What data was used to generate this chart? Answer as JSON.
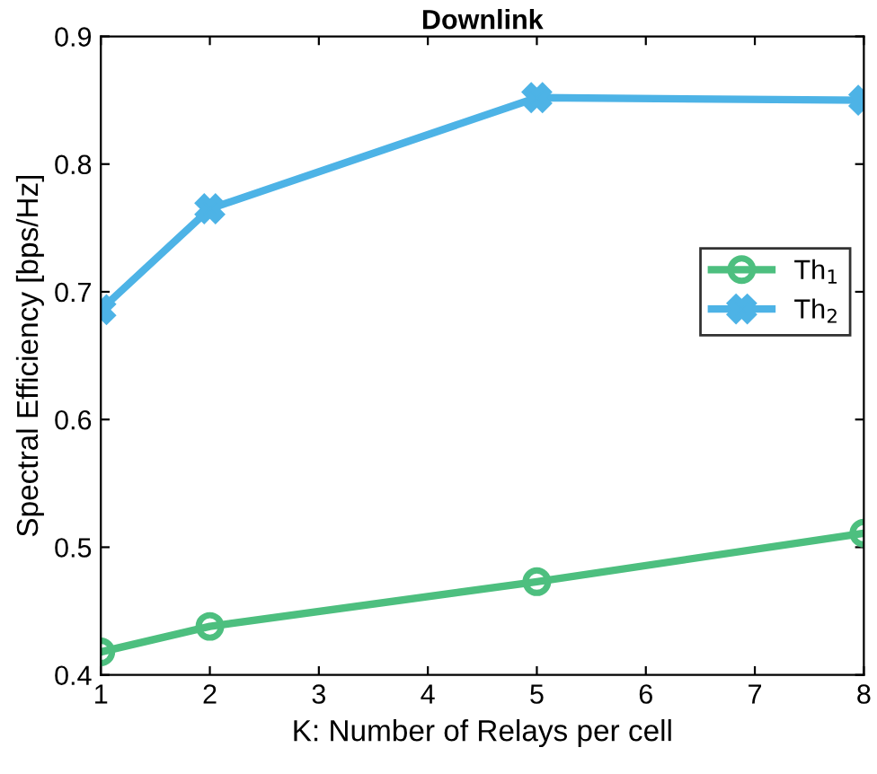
{
  "chart_data": {
    "type": "line",
    "title": "Downlink",
    "xlabel": "K: Number of Relays per cell",
    "ylabel": "Spectral Efficiency [bps/Hz]",
    "x": [
      1,
      2,
      5,
      8
    ],
    "series": [
      {
        "name": "Th$_{1}$",
        "color": "#4dbf7f",
        "marker": "circle",
        "values": [
          0.418,
          0.438,
          0.473,
          0.511
        ]
      },
      {
        "name": "Th$_{2}$",
        "color": "#4db3e6",
        "marker": "cross",
        "values": [
          0.686,
          0.765,
          0.852,
          0.85
        ]
      }
    ],
    "xlim": [
      1,
      8
    ],
    "xticks": [
      1,
      2,
      3,
      4,
      5,
      6,
      7,
      8
    ],
    "ylim": [
      0.4,
      0.9
    ],
    "yticks": [
      0.4,
      0.5,
      0.6,
      0.7,
      0.8,
      0.9
    ],
    "grid": false,
    "legend": "right",
    "line_style": "solid"
  }
}
